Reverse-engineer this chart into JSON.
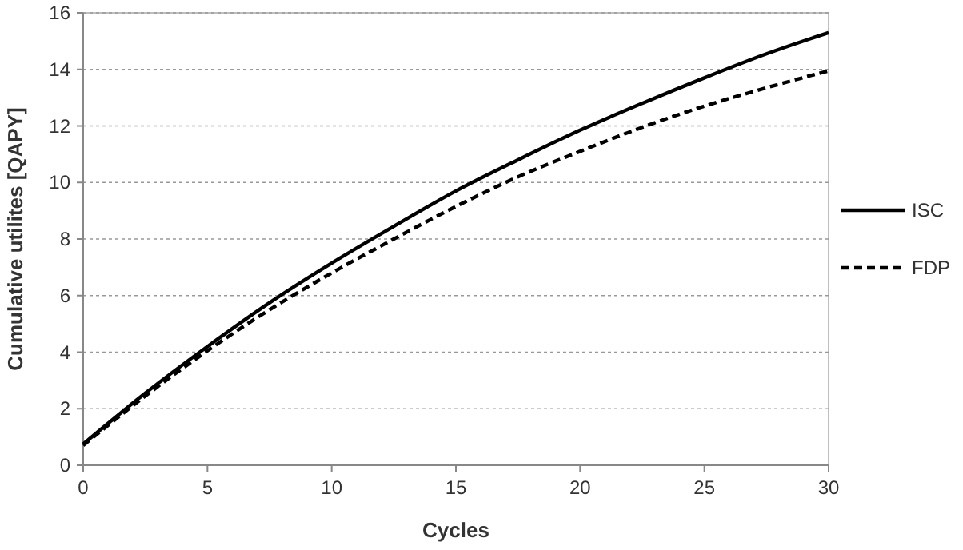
{
  "chart_data": {
    "type": "line",
    "xlabel": "Cycles",
    "ylabel": "Cumulative utilites [QAPY]",
    "x": [
      0,
      2.5,
      5,
      7.5,
      10,
      12.5,
      15,
      17.5,
      20,
      22.5,
      25,
      27.5,
      30
    ],
    "series": [
      {
        "name": "ISC",
        "color": "#000000",
        "line_style": "solid",
        "values": [
          0.75,
          2.55,
          4.2,
          5.75,
          7.15,
          8.45,
          9.7,
          10.8,
          11.85,
          12.8,
          13.7,
          14.55,
          15.3
        ]
      },
      {
        "name": "FDP",
        "color": "#000000",
        "line_style": "dashed",
        "values": [
          0.7,
          2.45,
          4.05,
          5.5,
          6.8,
          8.0,
          9.15,
          10.2,
          11.1,
          11.95,
          12.7,
          13.35,
          13.95
        ]
      }
    ],
    "xlim": [
      0,
      30
    ],
    "xticks": [
      0,
      5,
      10,
      15,
      20,
      25,
      30
    ],
    "ylim": [
      0,
      16
    ],
    "yticks": [
      0,
      2,
      4,
      6,
      8,
      10,
      12,
      14,
      16
    ],
    "grid": "y",
    "legend": "right",
    "marker": "none"
  }
}
